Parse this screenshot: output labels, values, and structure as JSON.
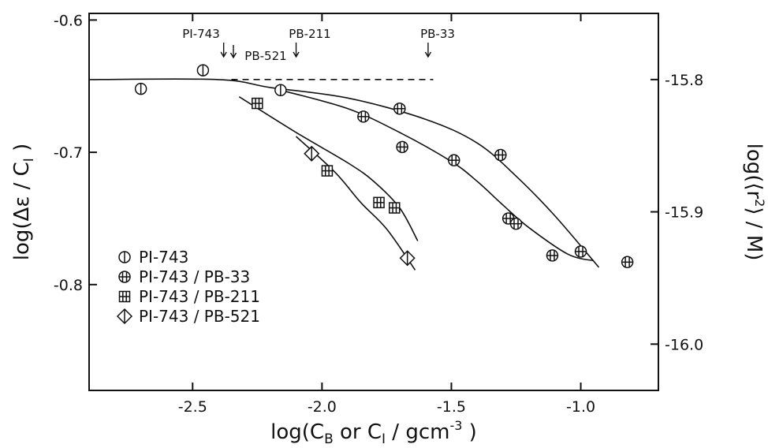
{
  "chart_data": {
    "type": "scatter",
    "x_axis": {
      "label": "log(C_B or C_I / gcm⁻³)",
      "label_parts": {
        "pre": "log(C",
        "sub1": "B",
        "mid": " or C",
        "sub2": "I",
        "post": " / gcm",
        "sup": "-3",
        "end": " )"
      },
      "range": [
        -2.9,
        -0.7
      ],
      "ticks": [
        -2.5,
        -2.0,
        -1.5,
        -1.0
      ],
      "tick_labels": [
        "-2.5",
        "-2.0",
        "-1.5",
        "-1.0"
      ]
    },
    "y_axis_left": {
      "label": "log(Δε / C_I)",
      "label_parts": {
        "pre": "log(Δε / C",
        "sub": "I",
        "end": " )"
      },
      "range": [
        -0.88,
        -0.595
      ],
      "ticks": [
        -0.6,
        -0.7,
        -0.8
      ],
      "tick_labels": [
        "-0.6",
        "-0.7",
        "-0.8"
      ]
    },
    "y_axis_right": {
      "label": "log(⟨r²⟩ / M)",
      "label_parts": {
        "pre": "log(⟨r",
        "sup": "2",
        "end": "⟩ / M)"
      },
      "ticks": [
        -15.8,
        -15.9,
        -16.0
      ],
      "tick_labels": [
        "-15.8",
        "-15.9",
        "-16.0"
      ],
      "left_equivalent": [
        -0.645,
        -0.745,
        -0.845
      ]
    },
    "grid": false,
    "legend": {
      "placement": "lower-left",
      "entries": [
        {
          "label": "PI-743",
          "marker": "circle-vbar"
        },
        {
          "label": "PI-743 / PB-33",
          "marker": "circle-hatched"
        },
        {
          "label": "PI-743 / PB-211",
          "marker": "square-hatched"
        },
        {
          "label": "PI-743 / PB-521",
          "marker": "diamond-bar"
        }
      ]
    },
    "series": [
      {
        "marker": "circle-vbar",
        "points": [
          [
            -2.7,
            -0.652
          ],
          [
            -2.46,
            -0.638
          ],
          [
            -2.16,
            -0.653
          ]
        ]
      },
      {
        "marker": "circle-hatched",
        "points": [
          [
            -1.84,
            -0.673
          ],
          [
            -1.7,
            -0.667
          ],
          [
            -1.69,
            -0.696
          ],
          [
            -1.49,
            -0.706
          ],
          [
            -1.31,
            -0.702
          ],
          [
            -1.28,
            -0.75
          ],
          [
            -1.25,
            -0.754
          ],
          [
            -1.11,
            -0.778
          ],
          [
            -1.0,
            -0.775
          ],
          [
            -0.82,
            -0.783
          ]
        ]
      },
      {
        "marker": "square-hatched",
        "points": [
          [
            -2.25,
            -0.663
          ],
          [
            -1.98,
            -0.714
          ],
          [
            -1.78,
            -0.738
          ],
          [
            -1.72,
            -0.742
          ]
        ]
      },
      {
        "marker": "diamond-bar",
        "points": [
          [
            -2.04,
            -0.701
          ],
          [
            -1.67,
            -0.78
          ]
        ]
      }
    ],
    "reference_line": {
      "style": "dashed",
      "y": -0.645,
      "x_range": [
        -2.35,
        -1.57
      ]
    },
    "fit_curves": [
      {
        "points": [
          [
            -2.9,
            -0.645
          ],
          [
            -2.4,
            -0.645
          ],
          [
            -2.2,
            -0.651
          ],
          [
            -1.9,
            -0.659
          ],
          [
            -1.6,
            -0.675
          ],
          [
            -1.4,
            -0.693
          ],
          [
            -1.25,
            -0.718
          ],
          [
            -1.1,
            -0.748
          ],
          [
            -0.93,
            -0.787
          ]
        ]
      },
      {
        "points": [
          [
            -2.16,
            -0.653
          ],
          [
            -1.9,
            -0.667
          ],
          [
            -1.7,
            -0.685
          ],
          [
            -1.5,
            -0.707
          ],
          [
            -1.4,
            -0.722
          ],
          [
            -1.3,
            -0.74
          ],
          [
            -1.2,
            -0.757
          ],
          [
            -1.05,
            -0.777
          ],
          [
            -0.95,
            -0.782
          ]
        ]
      },
      {
        "points": [
          [
            -2.32,
            -0.658
          ],
          [
            -2.1,
            -0.685
          ],
          [
            -1.9,
            -0.708
          ],
          [
            -1.8,
            -0.722
          ],
          [
            -1.7,
            -0.742
          ],
          [
            -1.63,
            -0.767
          ]
        ]
      },
      {
        "points": [
          [
            -2.1,
            -0.688
          ],
          [
            -1.95,
            -0.715
          ],
          [
            -1.85,
            -0.738
          ],
          [
            -1.75,
            -0.758
          ],
          [
            -1.64,
            -0.789
          ]
        ]
      }
    ],
    "annotations": [
      {
        "label": "PI-743",
        "x": -2.38
      },
      {
        "label": "PB-521",
        "x": -2.34
      },
      {
        "label": "PB-211",
        "x": -2.1
      },
      {
        "label": "PB-33",
        "x": -1.59
      }
    ]
  }
}
